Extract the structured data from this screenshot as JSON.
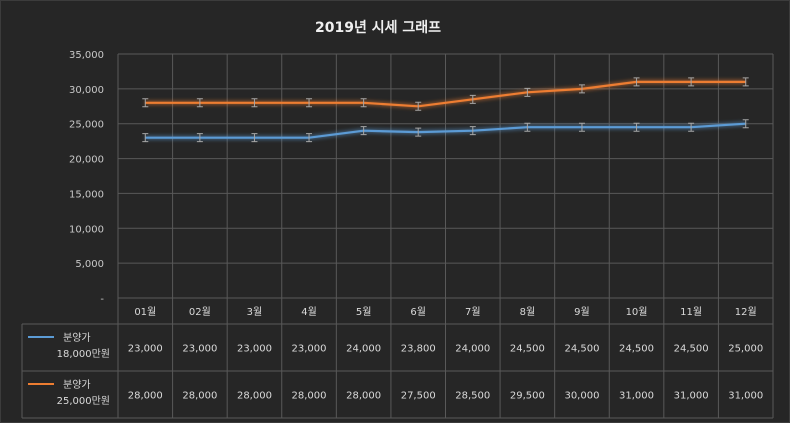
{
  "chart_data": {
    "type": "line",
    "title": "2019년 시세 그래프",
    "categories": [
      "01월",
      "02월",
      "3월",
      "4월",
      "5월",
      "6월",
      "7월",
      "8월",
      "9월",
      "10월",
      "11월",
      "12월"
    ],
    "ylim": [
      0,
      35000
    ],
    "yticks": [
      "-",
      "5,000",
      "10,000",
      "15,000",
      "20,000",
      "25,000",
      "30,000",
      "35,000"
    ],
    "grid": true,
    "legend": "data-table",
    "error_bars": true,
    "series": [
      {
        "name": "분양가",
        "name2": "18,000만원",
        "color": "#5b9bd5",
        "values": [
          23000,
          23000,
          23000,
          23000,
          24000,
          23800,
          24000,
          24500,
          24500,
          24500,
          24500,
          25000
        ],
        "labels": [
          "23,000",
          "23,000",
          "23,000",
          "23,000",
          "24,000",
          "23,800",
          "24,000",
          "24,500",
          "24,500",
          "24,500",
          "24,500",
          "25,000"
        ]
      },
      {
        "name": "분양가",
        "name2": "25,000만원",
        "color": "#ed7d31",
        "values": [
          28000,
          28000,
          28000,
          28000,
          28000,
          27500,
          28500,
          29500,
          30000,
          31000,
          31000,
          31000
        ],
        "labels": [
          "28,000",
          "28,000",
          "28,000",
          "28,000",
          "28,000",
          "27,500",
          "28,500",
          "29,500",
          "30,000",
          "31,000",
          "31,000",
          "31,000"
        ]
      }
    ]
  }
}
